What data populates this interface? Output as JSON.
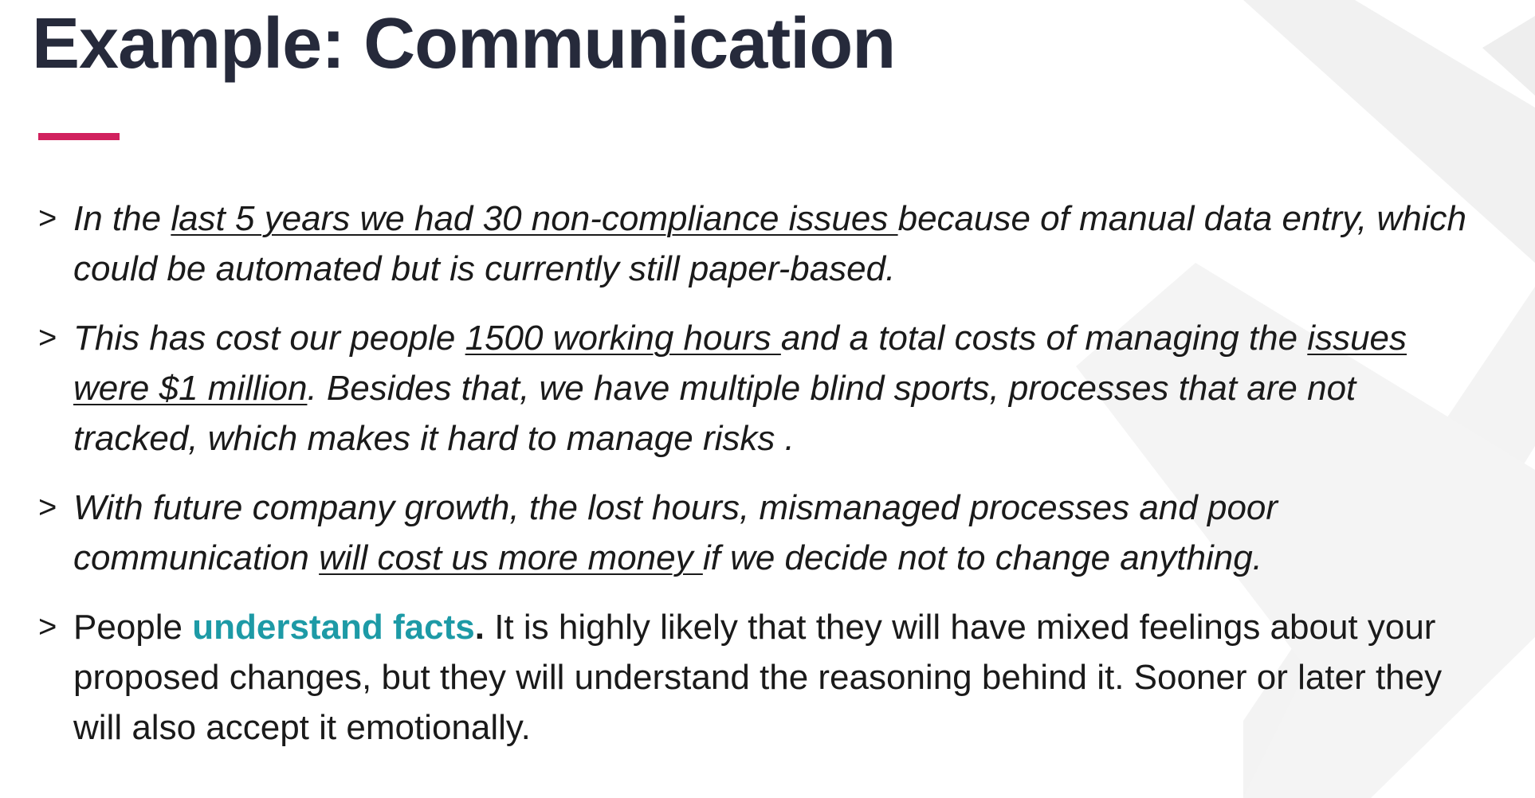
{
  "slide": {
    "title": "Example: Communication",
    "accent_color": "#d1215e",
    "highlight_color": "#1d9aa6",
    "title_color": "#262a3b"
  },
  "bullets": [
    {
      "marker": ">",
      "segments": [
        "In the ",
        "last 5 years we had 30 non-compliance issues ",
        "because of manual data entry, which could be automated but is currently still paper-based."
      ]
    },
    {
      "marker": ">",
      "segments": [
        "This has cost our people ",
        "1500 working hours ",
        "and a total costs of managing the ",
        "issues were $1 million",
        ". Besides that, we have multiple blind sports, processes that are not tracked, which makes it hard to manage risks ."
      ]
    },
    {
      "marker": ">",
      "segments": [
        "With future company growth, the lost hours, mismanaged processes and poor communication ",
        "will cost us more money ",
        "if we decide not to change anything."
      ]
    },
    {
      "marker": ">",
      "segments": [
        "People ",
        "understand facts",
        ".",
        " It is highly likely that they will have mixed feelings about your proposed changes, but they will understand the reasoning behind it. Sooner or later they will also accept it emotionally."
      ]
    }
  ]
}
